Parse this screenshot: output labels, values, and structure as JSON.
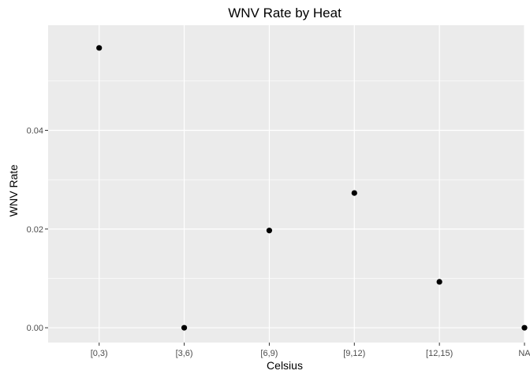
{
  "chart_data": {
    "type": "scatter",
    "title": "WNV Rate by Heat",
    "xlabel": "Celsius",
    "ylabel": "WNV Rate",
    "categories": [
      "[0,3)",
      "[3,6)",
      "[6,9)",
      "[9,12)",
      "[12,15)",
      "NA"
    ],
    "values": [
      0.0567,
      0.0,
      0.0197,
      0.0273,
      0.0093,
      0.0
    ],
    "ylim": [
      -0.003,
      0.0613
    ],
    "yticks": [
      0.0,
      0.02,
      0.04
    ],
    "ytick_labels": [
      "0.00",
      "0.02",
      "0.04"
    ],
    "grid": true,
    "legend": "none",
    "colors": {
      "panel_background": "#ebebeb",
      "grid_major": "#ffffff",
      "point": "#000000",
      "tick_text": "#4d4d4d",
      "tick_mark": "#333333"
    }
  }
}
